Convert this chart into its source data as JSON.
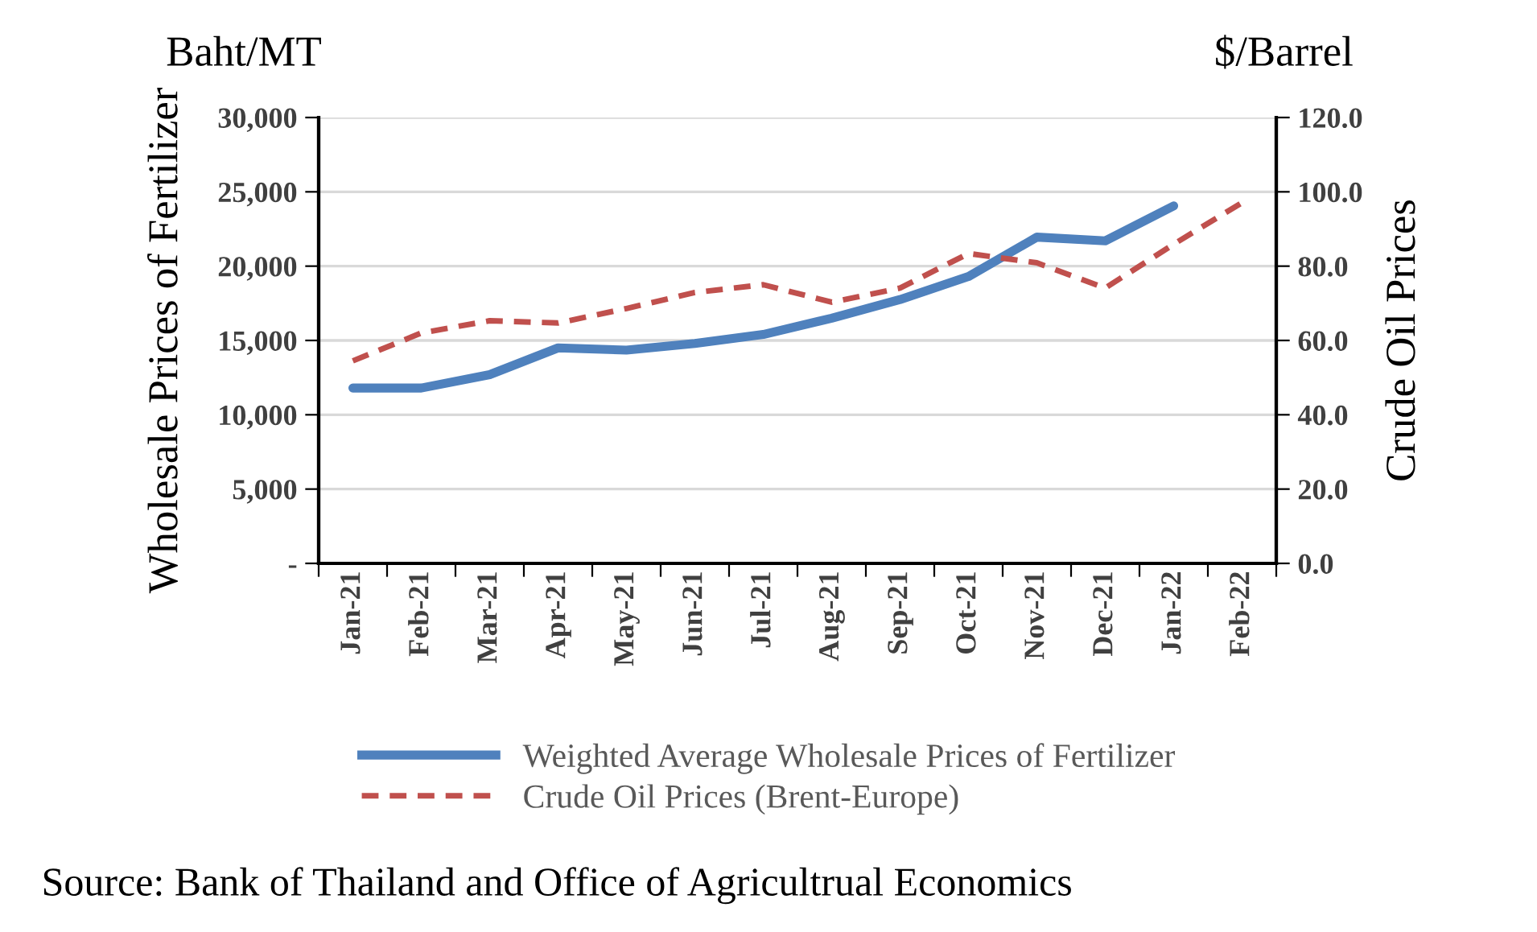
{
  "chart_data": {
    "type": "line",
    "ylabel": "Wholesale Prices of Fertilizer",
    "y2label": "Crude Oil Prices",
    "categories": [
      "Jan-21",
      "Feb-21",
      "Mar-21",
      "Apr-21",
      "May-21",
      "Jun-21",
      "Jul-21",
      "Aug-21",
      "Sep-21",
      "Oct-21",
      "Nov-21",
      "Dec-21",
      "Jan-22",
      "Feb-22"
    ],
    "series": [
      {
        "name": "Weighted Average Wholesale Prices of Fertilizer",
        "color": "#4f81bd",
        "line_style": "solid",
        "values": [
          11800,
          11800,
          12700,
          14500,
          14350,
          14800,
          15400,
          16500,
          17750,
          19300,
          21950,
          21700,
          24050,
          null
        ]
      },
      {
        "name": "Crude Oil Prices (Brent-Europe)",
        "color": "#c0504d",
        "line_style": "dashed",
        "axis": "y2",
        "values": [
          54.5,
          62.0,
          65.3,
          64.7,
          68.6,
          72.9,
          75.0,
          70.3,
          74.1,
          83.4,
          80.9,
          74.1,
          85.9,
          97.1
        ]
      }
    ],
    "ylim": [
      0,
      30000
    ],
    "yticks": [
      {
        "value": 0,
        "label": "-"
      },
      {
        "value": 5000,
        "label": "5,000"
      },
      {
        "value": 10000,
        "label": "10,000"
      },
      {
        "value": 15000,
        "label": "15,000"
      },
      {
        "value": 20000,
        "label": "20,000"
      },
      {
        "value": 25000,
        "label": "25,000"
      },
      {
        "value": 30000,
        "label": "30,000"
      }
    ],
    "y2lim": [
      0,
      120
    ],
    "y2ticks": [
      {
        "value": 0,
        "label": "0.0"
      },
      {
        "value": 20,
        "label": "20.0"
      },
      {
        "value": 40,
        "label": "40.0"
      },
      {
        "value": 60,
        "label": "60.0"
      },
      {
        "value": 80,
        "label": "80.0"
      },
      {
        "value": 100,
        "label": "100.0"
      },
      {
        "value": 120,
        "label": "120.0"
      }
    ],
    "grid": "y",
    "legend": "bottom",
    "marker": "none",
    "annotations": [
      "Baht/MT",
      "$/Barrel",
      "Source: Bank of Thailand and Office of Agricultrual Economics"
    ]
  }
}
